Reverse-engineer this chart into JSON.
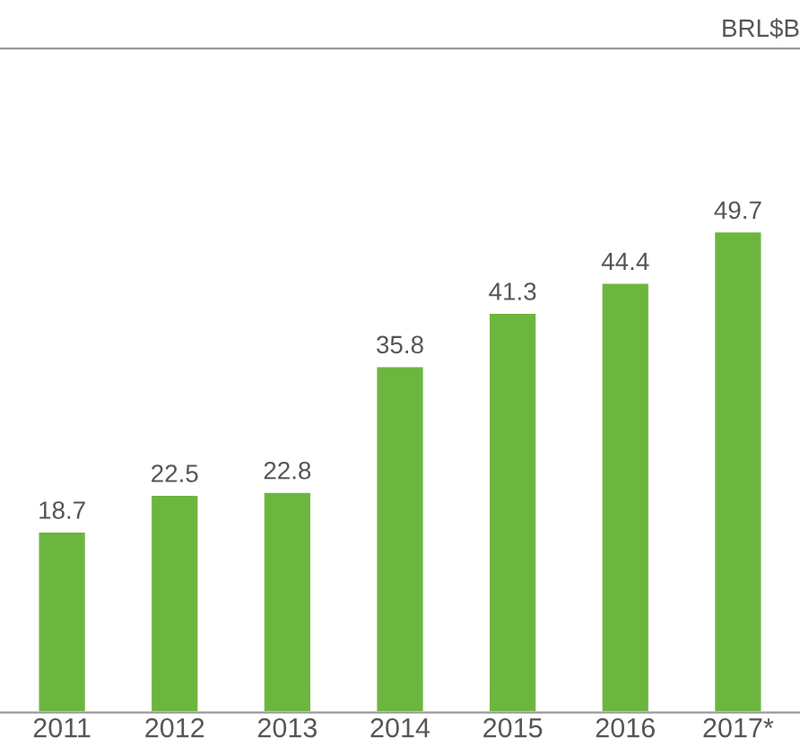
{
  "chart_data": {
    "type": "bar",
    "annotations": [
      "BRL$B"
    ],
    "categories": [
      "2011",
      "2012",
      "2013",
      "2014",
      "2015",
      "2016",
      "2017*"
    ],
    "values": [
      18.7,
      22.5,
      22.8,
      35.8,
      41.3,
      44.4,
      49.7
    ],
    "color": "#6cb63f",
    "data_labels": true,
    "grid": false,
    "legend": false
  }
}
